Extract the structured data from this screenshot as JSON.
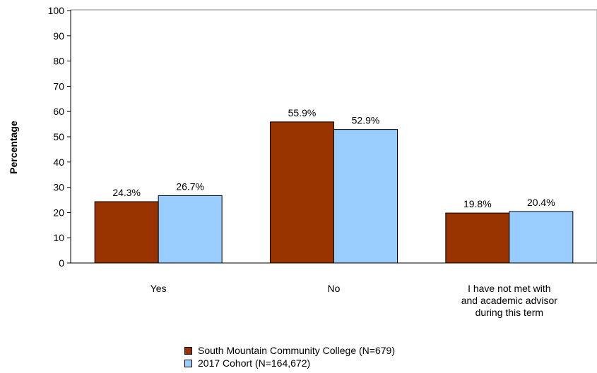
{
  "chart_data": {
    "type": "bar",
    "ylabel": "Percentage",
    "xlabel": "",
    "ylim": [
      0,
      100
    ],
    "yticks": [
      0,
      10,
      20,
      30,
      40,
      50,
      60,
      70,
      80,
      90,
      100
    ],
    "categories": [
      [
        "Yes"
      ],
      [
        "No"
      ],
      [
        "I have not met with",
        "and academic advisor",
        "during this term"
      ]
    ],
    "series": [
      {
        "name": "South Mountain Community College (N=679)",
        "color": "#993300",
        "values": [
          24.3,
          55.9,
          19.8
        ],
        "labels": [
          "24.3%",
          "55.9%",
          "19.8%"
        ]
      },
      {
        "name": "2017 Cohort (N=164,672)",
        "color": "#99ccff",
        "values": [
          26.7,
          52.9,
          20.4
        ],
        "labels": [
          "26.7%",
          "52.9%",
          "20.4%"
        ]
      }
    ],
    "grid": false,
    "legend_position": "bottom"
  }
}
